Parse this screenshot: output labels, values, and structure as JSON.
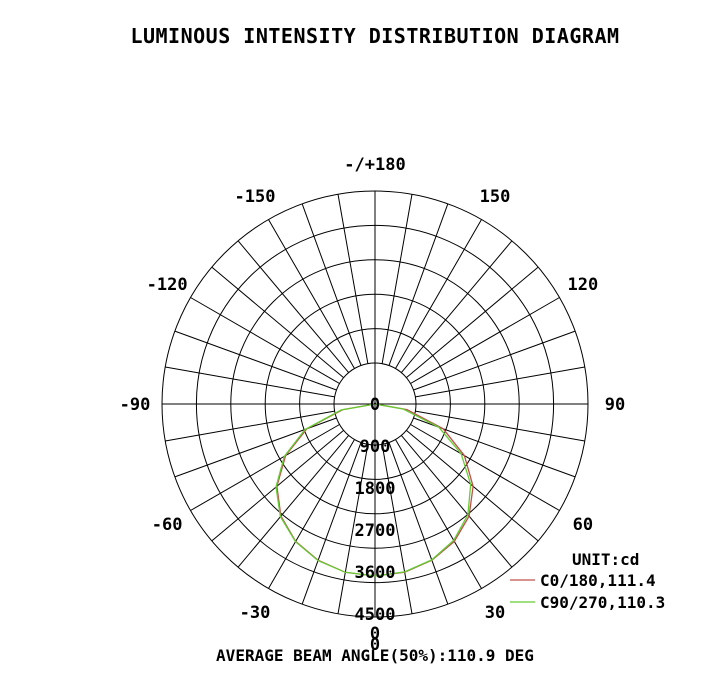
{
  "title": "LUMINOUS INTENSITY DISTRIBUTION DIAGRAM",
  "footer": "AVERAGE BEAM ANGLE(50%):110.9 DEG",
  "chart_data": {
    "type": "polar",
    "unit_label": "UNIT:cd",
    "rmax": 4500,
    "radial_ticks": [
      "0",
      "900",
      "1800",
      "2700",
      "3600",
      "4500"
    ],
    "radial_values": [
      0,
      900,
      1800,
      2700,
      3600,
      4500
    ],
    "angle_labels": [
      {
        "deg": 0,
        "text": "0"
      },
      {
        "deg": 30,
        "text": "30"
      },
      {
        "deg": 60,
        "text": "60"
      },
      {
        "deg": 90,
        "text": "90"
      },
      {
        "deg": 120,
        "text": "120"
      },
      {
        "deg": 150,
        "text": "150"
      },
      {
        "deg": 180,
        "text": "-/+180"
      },
      {
        "deg": -150,
        "text": "-150"
      },
      {
        "deg": -120,
        "text": "-120"
      },
      {
        "deg": -90,
        "text": "-90"
      },
      {
        "deg": -60,
        "text": "-60"
      },
      {
        "deg": -30,
        "text": "-30"
      }
    ],
    "series": [
      {
        "name": "C0/180,111.4",
        "color": "#c0504d",
        "points": [
          [
            0,
            4500
          ],
          [
            10,
            4470
          ],
          [
            20,
            4350
          ],
          [
            30,
            4150
          ],
          [
            40,
            3830
          ],
          [
            50,
            3350
          ],
          [
            60,
            2700
          ],
          [
            70,
            1900
          ],
          [
            80,
            850
          ],
          [
            90,
            0
          ],
          [
            -10,
            4470
          ],
          [
            -20,
            4350
          ],
          [
            -30,
            4150
          ],
          [
            -40,
            3830
          ],
          [
            -50,
            3350
          ],
          [
            -60,
            2700
          ],
          [
            -70,
            1900
          ],
          [
            -80,
            850
          ],
          [
            -90,
            0
          ]
        ]
      },
      {
        "name": "C90/270,110.3",
        "color": "#66cc33",
        "points": [
          [
            0,
            4500
          ],
          [
            10,
            4460
          ],
          [
            20,
            4340
          ],
          [
            30,
            4120
          ],
          [
            40,
            3780
          ],
          [
            50,
            3270
          ],
          [
            60,
            2600
          ],
          [
            70,
            1780
          ],
          [
            80,
            750
          ],
          [
            90,
            0
          ],
          [
            -10,
            4470
          ],
          [
            -20,
            4360
          ],
          [
            -30,
            4160
          ],
          [
            -40,
            3850
          ],
          [
            -50,
            3380
          ],
          [
            -60,
            2740
          ],
          [
            -70,
            1950
          ],
          [
            -80,
            900
          ],
          [
            -90,
            0
          ]
        ]
      }
    ]
  }
}
